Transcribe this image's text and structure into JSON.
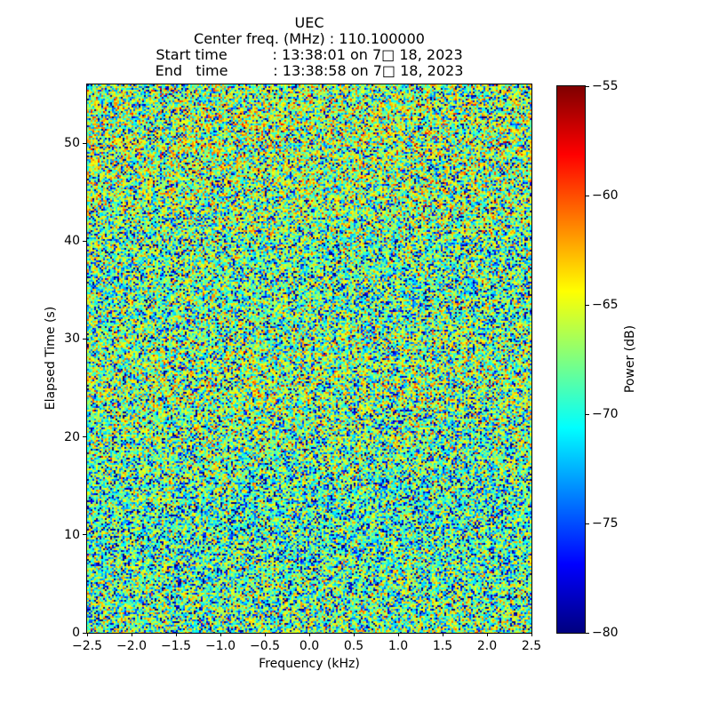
{
  "header": {
    "title": "UEC",
    "annotations": [
      "Center freq. (MHz) : 110.100000",
      "Start time          : 13:38:01 on 7□ 18, 2023",
      "End   time          : 13:38:58 on 7□ 18, 2023"
    ]
  },
  "chart_data": {
    "type": "heatmap",
    "title": "UEC",
    "annotations": [
      "Center freq. (MHz) : 110.100000",
      "Start time          : 13:38:01 on 7□ 18, 2023",
      "End   time          : 13:38:58 on 7□ 18, 2023"
    ],
    "xlabel": "Frequency (kHz)",
    "ylabel": "Elapsed Time (s)",
    "xlim": [
      -2.5,
      2.5
    ],
    "ylim": [
      0,
      56
    ],
    "x_ticks": [
      -2.5,
      -2.0,
      -1.5,
      -1.0,
      -0.5,
      0.0,
      0.5,
      1.0,
      1.5,
      2.0,
      2.5
    ],
    "x_tick_labels": [
      "−2.5",
      "−2.0",
      "−1.5",
      "−1.0",
      "−0.5",
      "0.0",
      "0.5",
      "1.0",
      "1.5",
      "2.0",
      "2.5"
    ],
    "y_ticks": [
      0,
      10,
      20,
      30,
      40,
      50
    ],
    "y_tick_labels": [
      "0",
      "10",
      "20",
      "30",
      "40",
      "50"
    ],
    "grid": false,
    "colorbar": {
      "label": "Power (dB)",
      "vmin": -80,
      "vmax": -55,
      "ticks": [
        -55,
        -60,
        -65,
        -70,
        -75,
        -80
      ],
      "tick_labels": [
        "−55",
        "−60",
        "−65",
        "−70",
        "−75",
        "−80"
      ],
      "colormap": "jet",
      "gradient_stops": [
        {
          "pos": 0.0,
          "color": "#00007f"
        },
        {
          "pos": 0.125,
          "color": "#0000ff"
        },
        {
          "pos": 0.375,
          "color": "#00ffff"
        },
        {
          "pos": 0.625,
          "color": "#ffff00"
        },
        {
          "pos": 0.875,
          "color": "#ff0000"
        },
        {
          "pos": 1.0,
          "color": "#7f0000"
        }
      ]
    },
    "values": {
      "description": "uniform broadband RF noise field, no coherent signal visible",
      "approx_median_power_db": -68,
      "approx_range_db": [
        -80,
        -58
      ],
      "noise_model": "power_db = -66.5 + 10*log10(X), X ~ Exp(1), clipped to [-80,-55]",
      "grid_cols": 250,
      "grid_rows": 309
    },
    "background_color": "#ffffff"
  }
}
